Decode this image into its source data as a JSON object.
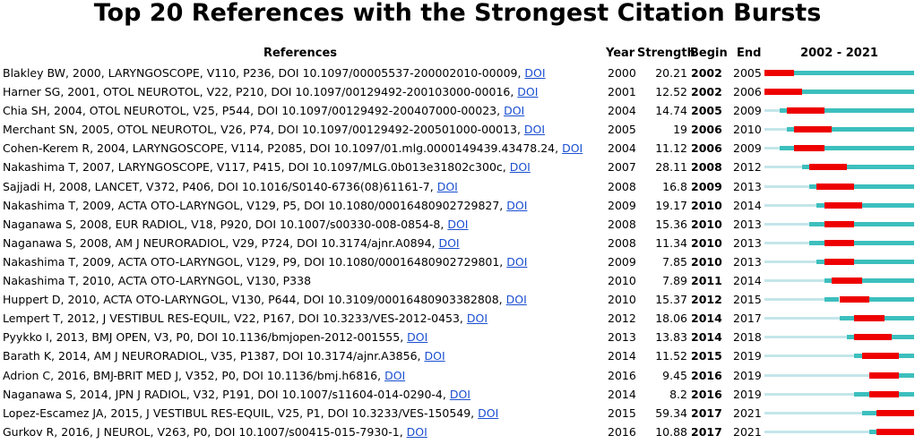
{
  "title": "Top 20 References with the Strongest Citation Bursts",
  "headers": {
    "references": "References",
    "year": "Year",
    "strength": "Strength",
    "begin": "Begin",
    "end": "End",
    "range": "2002 - 2021"
  },
  "colors": {
    "burst": "#ee0000",
    "cited": "#3cbfbd",
    "pre": "#c4e6ea"
  },
  "chart_data": {
    "type": "table",
    "timeline_start": 2002,
    "timeline_end": 2021,
    "columns": [
      "References",
      "Year",
      "Strength",
      "Begin",
      "End",
      "2002 - 2021"
    ],
    "rows": [
      {
        "ref": "Blakley BW, 2000, LARYNGOSCOPE, V110, P236, DOI 10.1097/00005537-200002010-00009, ",
        "doi": "DOI",
        "year": "2000",
        "strength": "20.21",
        "begin": "2002",
        "end": "2005"
      },
      {
        "ref": "Harner SG, 2001, OTOL NEUROTOL, V22, P210, DOI 10.1097/00129492-200103000-00016, ",
        "doi": "DOI",
        "year": "2001",
        "strength": "12.52",
        "begin": "2002",
        "end": "2006"
      },
      {
        "ref": "Chia SH, 2004, OTOL NEUROTOL, V25, P544, DOI 10.1097/00129492-200407000-00023, ",
        "doi": "DOI",
        "year": "2004",
        "strength": "14.74",
        "begin": "2005",
        "end": "2009"
      },
      {
        "ref": "Merchant SN, 2005, OTOL NEUROTOL, V26, P74, DOI 10.1097/00129492-200501000-00013, ",
        "doi": "DOI",
        "year": "2005",
        "strength": "19",
        "begin": "2006",
        "end": "2010"
      },
      {
        "ref": "Cohen-Kerem R, 2004, LARYNGOSCOPE, V114, P2085, DOI 10.1097/01.mlg.0000149439.43478.24, ",
        "doi": "DOI",
        "year": "2004",
        "strength": "11.12",
        "begin": "2006",
        "end": "2009"
      },
      {
        "ref": "Nakashima T, 2007, LARYNGOSCOPE, V117, P415, DOI 10.1097/MLG.0b013e31802c300c, ",
        "doi": "DOI",
        "year": "2007",
        "strength": "28.11",
        "begin": "2008",
        "end": "2012"
      },
      {
        "ref": "Sajjadi H, 2008, LANCET, V372, P406, DOI 10.1016/S0140-6736(08)61161-7, ",
        "doi": "DOI",
        "year": "2008",
        "strength": "16.8",
        "begin": "2009",
        "end": "2013"
      },
      {
        "ref": "Nakashima T, 2009, ACTA OTO-LARYNGOL, V129, P5, DOI 10.1080/00016480902729827, ",
        "doi": "DOI",
        "year": "2009",
        "strength": "19.17",
        "begin": "2010",
        "end": "2014"
      },
      {
        "ref": "Naganawa S, 2008, EUR RADIOL, V18, P920, DOI 10.1007/s00330-008-0854-8, ",
        "doi": "DOI",
        "year": "2008",
        "strength": "15.36",
        "begin": "2010",
        "end": "2013"
      },
      {
        "ref": "Naganawa S, 2008, AM J NEURORADIOL, V29, P724, DOI 10.3174/ajnr.A0894, ",
        "doi": "DOI",
        "year": "2008",
        "strength": "11.34",
        "begin": "2010",
        "end": "2013"
      },
      {
        "ref": "Nakashima T, 2009, ACTA OTO-LARYNGOL, V129, P9, DOI 10.1080/00016480902729801, ",
        "doi": "DOI",
        "year": "2009",
        "strength": "7.85",
        "begin": "2010",
        "end": "2013"
      },
      {
        "ref": "Nakashima T, 2010, ACTA OTO-LARYNGOL, V130, P338",
        "doi": "",
        "year": "2010",
        "strength": "7.89",
        "begin": "2011",
        "end": "2014"
      },
      {
        "ref": "Huppert D, 2010, ACTA OTO-LARYNGOL, V130, P644, DOI 10.3109/00016480903382808, ",
        "doi": "DOI",
        "year": "2010",
        "strength": "15.37",
        "begin": "2012",
        "end": "2015"
      },
      {
        "ref": "Lempert T, 2012, J VESTIBUL RES-EQUIL, V22, P167, DOI 10.3233/VES-2012-0453, ",
        "doi": "DOI",
        "year": "2012",
        "strength": "18.06",
        "begin": "2014",
        "end": "2017"
      },
      {
        "ref": "Pyykko I, 2013, BMJ OPEN, V3, P0, DOI 10.1136/bmjopen-2012-001555, ",
        "doi": "DOI",
        "year": "2013",
        "strength": "13.83",
        "begin": "2014",
        "end": "2018"
      },
      {
        "ref": "Barath K, 2014, AM J NEURORADIOL, V35, P1387, DOI 10.3174/ajnr.A3856, ",
        "doi": "DOI",
        "year": "2014",
        "strength": "11.52",
        "begin": "2015",
        "end": "2019"
      },
      {
        "ref": "Adrion C, 2016, BMJ-BRIT MED J, V352, P0, DOI 10.1136/bmj.h6816, ",
        "doi": "DOI",
        "year": "2016",
        "strength": "9.45",
        "begin": "2016",
        "end": "2019"
      },
      {
        "ref": "Naganawa S, 2014, JPN J RADIOL, V32, P191, DOI 10.1007/s11604-014-0290-4, ",
        "doi": "DOI",
        "year": "2014",
        "strength": "8.2",
        "begin": "2016",
        "end": "2019"
      },
      {
        "ref": "Lopez-Escamez JA, 2015, J VESTIBUL RES-EQUIL, V25, P1, DOI 10.3233/VES-150549, ",
        "doi": "DOI",
        "year": "2015",
        "strength": "59.34",
        "begin": "2017",
        "end": "2021"
      },
      {
        "ref": "Gurkov R, 2016, J NEUROL, V263, P0, DOI 10.1007/s00415-015-7930-1, ",
        "doi": "DOI",
        "year": "2016",
        "strength": "10.88",
        "begin": "2017",
        "end": "2021"
      }
    ]
  }
}
